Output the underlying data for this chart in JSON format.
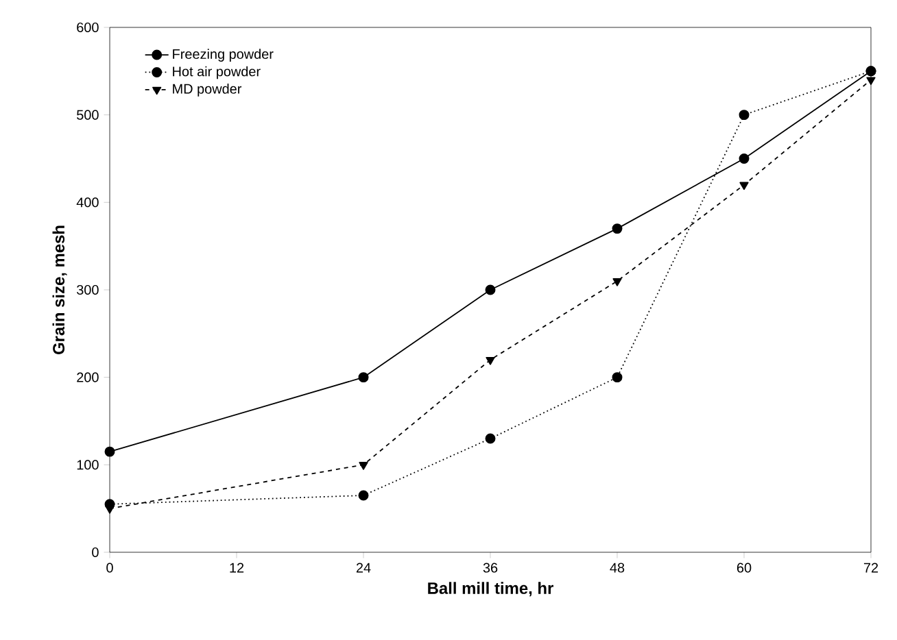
{
  "chart_data": {
    "type": "line",
    "xlabel": "Ball mill time, hr",
    "ylabel": "Grain size, mesh",
    "x": [
      0,
      24,
      36,
      48,
      60,
      72
    ],
    "series": [
      {
        "name": "Freezing powder",
        "color": "#000000",
        "marker": "circle",
        "line_style": "solid",
        "values": [
          115,
          200,
          300,
          370,
          450,
          550
        ]
      },
      {
        "name": "Hot air powder",
        "color": "#000000",
        "marker": "circle",
        "line_style": "dotted",
        "values": [
          55,
          65,
          130,
          200,
          500,
          550
        ]
      },
      {
        "name": "MD powder",
        "color": "#000000",
        "marker": "triangle",
        "line_style": "dashed",
        "values": [
          50,
          100,
          220,
          310,
          420,
          540
        ]
      }
    ],
    "xlim": [
      0,
      72
    ],
    "xticks": [
      0,
      12,
      24,
      36,
      48,
      60,
      72
    ],
    "ylim": [
      0,
      600
    ],
    "yticks": [
      0,
      100,
      200,
      300,
      400,
      500,
      600
    ],
    "grid": false,
    "legend": "top left"
  }
}
